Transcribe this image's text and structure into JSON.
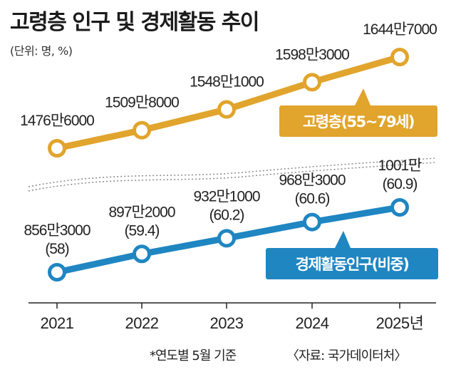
{
  "chart_data": {
    "type": "line",
    "title": "고령층 인구 및 경제활동 추이",
    "unit_label": "(단위: 명, %)",
    "x": [
      "2021",
      "2022",
      "2023",
      "2024",
      "2025"
    ],
    "x_tick_labels": [
      "2021",
      "2022",
      "2023",
      "2024",
      "2025년"
    ],
    "series": [
      {
        "name": "고령층(55~79세)",
        "color": "#e1a42c",
        "values": [
          14766000,
          15098000,
          15481000,
          15983000,
          16447000
        ],
        "value_labels": [
          "1476만6000",
          "1509만8000",
          "1548만1000",
          "1598만3000",
          "1644만7000"
        ]
      },
      {
        "name": "경제활동인구(비중)",
        "color": "#1f86c2",
        "values": [
          8563000,
          8972000,
          9321000,
          9683000,
          10010000
        ],
        "shares": [
          58,
          59.4,
          60.2,
          60.6,
          60.9
        ],
        "value_labels": [
          "856만3000",
          "897만2000",
          "932만1000",
          "968만3000",
          "1001만"
        ],
        "share_labels": [
          "(58)",
          "(59.4)",
          "(60.2)",
          "(60.6)",
          "(60.9)"
        ]
      }
    ]
  },
  "footnote_left": "*연도별 5월 기준",
  "source": "〈자료: 국가데이터처〉"
}
